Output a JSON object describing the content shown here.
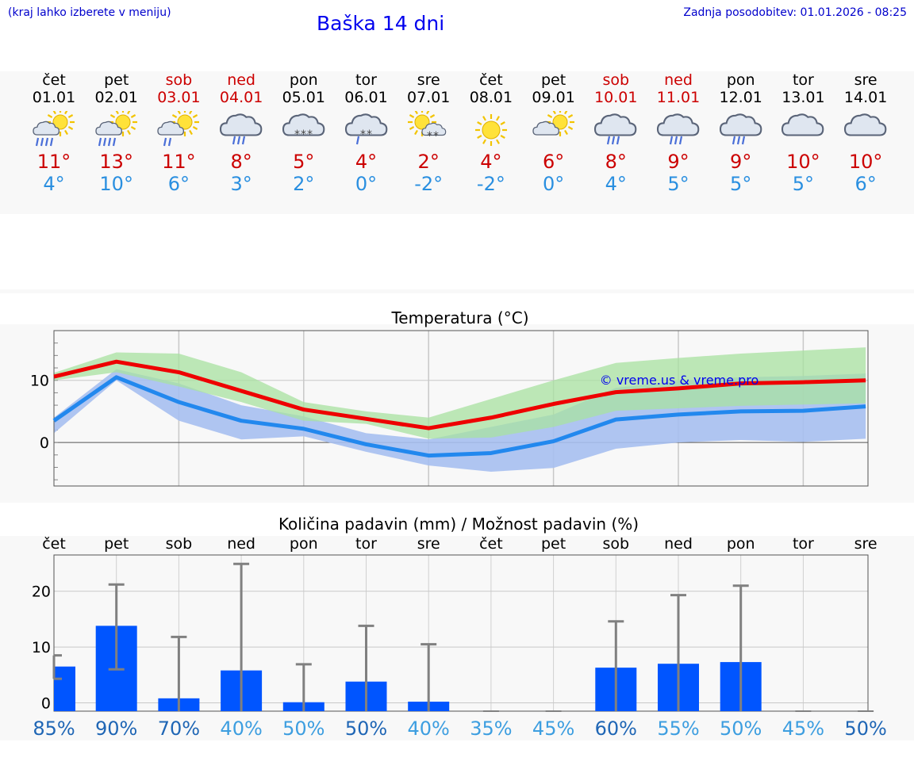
{
  "header": {
    "left_note": "(kraj lahko izberete v meniju)",
    "title": "Baška 14 dni",
    "updated": "Zadnja posodobitev: 01.01.2026 - 08:25"
  },
  "days": [
    {
      "name": "čet",
      "date": "01.01",
      "weekend": false,
      "icon": "sun-cloud-rain",
      "max": "11°",
      "min": "4°"
    },
    {
      "name": "pet",
      "date": "02.01",
      "weekend": false,
      "icon": "sun-cloud-rain",
      "max": "13°",
      "min": "10°"
    },
    {
      "name": "sob",
      "date": "03.01",
      "weekend": true,
      "icon": "sun-cloud-light-rain",
      "max": "11°",
      "min": "6°"
    },
    {
      "name": "ned",
      "date": "04.01",
      "weekend": true,
      "icon": "cloud-rain",
      "max": "8°",
      "min": "3°"
    },
    {
      "name": "pon",
      "date": "05.01",
      "weekend": false,
      "icon": "cloud-snow",
      "max": "5°",
      "min": "2°"
    },
    {
      "name": "tor",
      "date": "06.01",
      "weekend": false,
      "icon": "cloud-sleet",
      "max": "4°",
      "min": "0°"
    },
    {
      "name": "sre",
      "date": "07.01",
      "weekend": false,
      "icon": "sun-cloud-snow",
      "max": "2°",
      "min": "-2°"
    },
    {
      "name": "čet",
      "date": "08.01",
      "weekend": false,
      "icon": "sun",
      "max": "4°",
      "min": "-2°"
    },
    {
      "name": "pet",
      "date": "09.01",
      "weekend": false,
      "icon": "sun-cloud",
      "max": "6°",
      "min": "0°"
    },
    {
      "name": "sob",
      "date": "10.01",
      "weekend": true,
      "icon": "cloud-rain",
      "max": "8°",
      "min": "4°"
    },
    {
      "name": "ned",
      "date": "11.01",
      "weekend": true,
      "icon": "cloud-rain",
      "max": "9°",
      "min": "5°"
    },
    {
      "name": "pon",
      "date": "12.01",
      "weekend": false,
      "icon": "cloud-rain",
      "max": "9°",
      "min": "5°"
    },
    {
      "name": "tor",
      "date": "13.01",
      "weekend": false,
      "icon": "cloud",
      "max": "10°",
      "min": "5°"
    },
    {
      "name": "sre",
      "date": "14.01",
      "weekend": false,
      "icon": "cloud",
      "max": "10°",
      "min": "6°"
    }
  ],
  "colors": {
    "max_line": "#ee0000",
    "min_line": "#2288ee",
    "max_band": "#a8e2a0",
    "min_band": "#a6bff0",
    "overlap_band": "#6cb8a2",
    "precip_bar": "#0055ff",
    "error_bar": "#808080",
    "chance_dark": "#1f66b5",
    "chance_light": "#3d9ee0"
  },
  "chart_data": [
    {
      "type": "line",
      "title": "Temperatura (°C)",
      "watermark": "© vreme.us & vreme.pro",
      "x": [
        1,
        2,
        3,
        4,
        5,
        6,
        7,
        8,
        9,
        10,
        11,
        12,
        13,
        14
      ],
      "ylim": [
        -7,
        18
      ],
      "yticks": [
        0,
        10
      ],
      "series": [
        {
          "name": "max",
          "values": [
            10.6,
            13.0,
            11.3,
            8.3,
            5.3,
            3.8,
            2.3,
            4.0,
            6.2,
            8.1,
            8.7,
            9.5,
            9.7,
            10.0
          ]
        },
        {
          "name": "min",
          "values": [
            3.5,
            10.5,
            6.5,
            3.5,
            2.2,
            -0.3,
            -2.1,
            -1.7,
            0.2,
            3.7,
            4.5,
            5.0,
            5.1,
            5.8
          ]
        }
      ],
      "max_range": {
        "low": [
          10.0,
          11.3,
          9.0,
          6.5,
          3.5,
          3.0,
          0.6,
          0.8,
          2.5,
          5.1,
          5.5,
          5.9,
          6.1,
          6.3
        ],
        "high": [
          11.2,
          14.5,
          14.3,
          11.3,
          6.5,
          5.0,
          4.0,
          7.0,
          10.0,
          12.8,
          13.6,
          14.3,
          14.8,
          15.3
        ]
      },
      "min_range": {
        "low": [
          1.5,
          10.0,
          3.5,
          0.5,
          1.0,
          -1.5,
          -3.7,
          -4.7,
          -4.1,
          -1.0,
          0.0,
          0.4,
          0.1,
          0.6
        ],
        "high": [
          4.0,
          11.8,
          9.5,
          6.0,
          4.2,
          1.5,
          0.5,
          2.5,
          4.5,
          8.8,
          9.9,
          10.5,
          10.7,
          11.1
        ]
      }
    },
    {
      "type": "bar",
      "title": "Količina padavin (mm) / Možnost padavin (%)",
      "categories": [
        "čet",
        "pet",
        "sob",
        "ned",
        "pon",
        "tor",
        "sre",
        "čet",
        "pet",
        "sob",
        "ned",
        "pon",
        "tor",
        "sre"
      ],
      "values": [
        6.5,
        13.8,
        0.8,
        5.8,
        0.1,
        3.8,
        0.2,
        0,
        0,
        6.3,
        7.0,
        7.3,
        0,
        0
      ],
      "error_low": [
        4.3,
        6.0,
        0,
        0,
        0,
        0,
        0,
        0,
        0,
        0,
        0,
        0,
        0,
        0
      ],
      "error_high": [
        8.5,
        21.2,
        11.8,
        24.9,
        6.9,
        13.8,
        10.5,
        0,
        0,
        14.6,
        19.3,
        21.0,
        0,
        0
      ],
      "chance": [
        "85%",
        "90%",
        "70%",
        "40%",
        "50%",
        "50%",
        "40%",
        "35%",
        "45%",
        "60%",
        "55%",
        "50%",
        "45%",
        "50%"
      ],
      "chance_dark": [
        true,
        true,
        true,
        false,
        false,
        true,
        false,
        false,
        false,
        true,
        false,
        false,
        false,
        true
      ],
      "ylim": [
        -1.5,
        26.5
      ],
      "yticks": [
        0,
        10,
        20
      ]
    }
  ]
}
